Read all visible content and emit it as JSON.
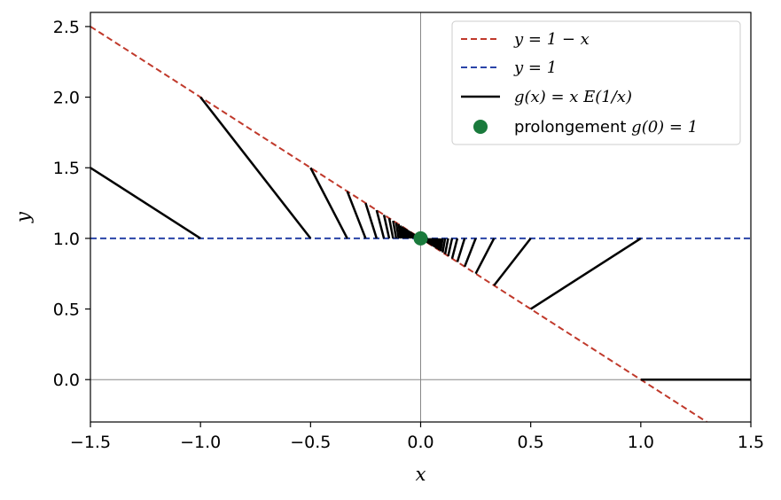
{
  "chart_data": {
    "type": "line",
    "xlabel": "x",
    "ylabel": "y",
    "xlim": [
      -1.5,
      1.5
    ],
    "ylim": [
      -0.3,
      2.6
    ],
    "xticks": [
      -1.5,
      -1.0,
      -0.5,
      0.0,
      0.5,
      1.0,
      1.5
    ],
    "xtick_labels": [
      "−1.5",
      "−1.0",
      "−0.5",
      "0.0",
      "0.5",
      "1.0",
      "1.5"
    ],
    "yticks": [
      0.0,
      0.5,
      1.0,
      1.5,
      2.0,
      2.5
    ],
    "ytick_labels": [
      "0.0",
      "0.5",
      "1.0",
      "1.5",
      "2.0",
      "2.5"
    ],
    "grid": false,
    "legend_position": "top-right",
    "series": [
      {
        "name": "y = 1 − x",
        "style": "dashed",
        "color": "#c0392b",
        "x": [
          -1.5,
          1.3
        ],
        "y": [
          2.5,
          -0.3
        ]
      },
      {
        "name": "y = 1",
        "style": "dashed",
        "color": "#2a44a8",
        "x": [
          -1.5,
          1.5
        ],
        "y": [
          1,
          1
        ]
      },
      {
        "name": "g(x) = x E(1/x)",
        "style": "solid",
        "color": "#000000",
        "piecewise": "g(x) = x * floor(1/x) on each interval where floor(1/x) is constant, x in [-1.5, 1.5]"
      },
      {
        "name": "prolongement g(0) = 1",
        "style": "marker",
        "color": "#1a7a3c",
        "x": [
          0
        ],
        "y": [
          1
        ]
      }
    ],
    "reference_lines": [
      {
        "axis": "x",
        "value": 0,
        "color": "#888888"
      },
      {
        "axis": "y",
        "value": 0,
        "color": "#888888"
      }
    ],
    "legend": [
      {
        "label_pre": "",
        "label_math": "y = 1 − x",
        "label_post": "",
        "style": "dashed",
        "color": "#c0392b"
      },
      {
        "label_pre": "",
        "label_math": "y = 1",
        "label_post": "",
        "style": "dashed",
        "color": "#2a44a8"
      },
      {
        "label_pre": "",
        "label_math": "g(x) = x E(1/x)",
        "label_post": "",
        "style": "solid",
        "color": "#000000"
      },
      {
        "label_pre": "prolongement ",
        "label_math": "g(0) = 1",
        "label_post": "",
        "style": "marker",
        "color": "#1a7a3c"
      }
    ]
  }
}
